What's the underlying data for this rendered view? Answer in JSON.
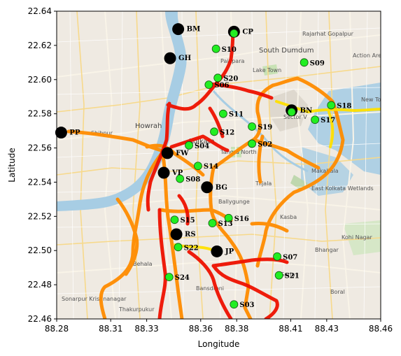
{
  "chart_data": {
    "type": "scatter",
    "title": "",
    "xlabel": "Longitude",
    "ylabel": "Latitude",
    "xlim": [
      88.28,
      88.46
    ],
    "ylim": [
      22.46,
      22.64
    ],
    "xticks": [
      88.28,
      88.31,
      88.33,
      88.36,
      88.38,
      88.41,
      88.43,
      88.46
    ],
    "yticks": [
      22.46,
      22.48,
      22.5,
      22.52,
      22.54,
      22.56,
      22.58,
      22.6,
      22.62,
      22.64
    ],
    "xtick_labels": [
      "88.28",
      "88.31",
      "88.33",
      "88.36",
      "88.38",
      "88.41",
      "88.43",
      "88.46"
    ],
    "ytick_labels": [
      "22.46",
      "22.48",
      "22.50",
      "22.52",
      "22.54",
      "22.56",
      "22.58",
      "22.60",
      "22.62",
      "22.64"
    ],
    "background": "street map of Kolkata",
    "colors": {
      "big_marker": "#000000",
      "station_marker": "#22ee22",
      "station_edge": "#115511",
      "track_high": "#ee1100",
      "track_mid": "#ff8c00",
      "track_low": "#ffe000"
    },
    "big_markers": [
      {
        "label": "BM",
        "lon": 88.3475,
        "lat": 22.6295
      },
      {
        "label": "CP",
        "lon": 88.3785,
        "lat": 22.628
      },
      {
        "label": "GH",
        "lon": 88.343,
        "lat": 22.6125
      },
      {
        "label": "BN",
        "lon": 88.4105,
        "lat": 22.582
      },
      {
        "label": "PP",
        "lon": 88.2825,
        "lat": 22.569
      },
      {
        "label": "FW",
        "lon": 88.3415,
        "lat": 22.557
      },
      {
        "label": "VP",
        "lon": 88.3395,
        "lat": 22.5455
      },
      {
        "label": "BG",
        "lon": 88.3635,
        "lat": 22.537
      },
      {
        "label": "RS",
        "lon": 88.3465,
        "lat": 22.5095
      },
      {
        "label": "JP",
        "lon": 88.369,
        "lat": 22.4995
      }
    ],
    "stations": [
      {
        "label": "CP",
        "lon": 88.3785,
        "lat": 22.627
      },
      {
        "label": "S10",
        "lon": 88.3685,
        "lat": 22.618
      },
      {
        "label": "S09",
        "lon": 88.4175,
        "lat": 22.61
      },
      {
        "label": "S20",
        "lon": 88.3695,
        "lat": 22.601
      },
      {
        "label": "S06",
        "lon": 88.3645,
        "lat": 22.597
      },
      {
        "label": "S11",
        "lon": 88.3725,
        "lat": 22.58
      },
      {
        "label": "BN",
        "lon": 88.4105,
        "lat": 22.581
      },
      {
        "label": "S18",
        "lon": 88.4325,
        "lat": 22.585
      },
      {
        "label": "S17",
        "lon": 88.4235,
        "lat": 22.5765
      },
      {
        "label": "S19",
        "lon": 88.3885,
        "lat": 22.5725
      },
      {
        "label": "S12",
        "lon": 88.3675,
        "lat": 22.5695
      },
      {
        "label": "S04",
        "lon": 88.3535,
        "lat": 22.5615
      },
      {
        "label": "S02",
        "lon": 88.3885,
        "lat": 22.5625
      },
      {
        "label": "S14",
        "lon": 88.3585,
        "lat": 22.5495
      },
      {
        "label": "S08",
        "lon": 88.3485,
        "lat": 22.542
      },
      {
        "label": "S15",
        "lon": 88.3455,
        "lat": 22.518
      },
      {
        "label": "S16",
        "lon": 88.3755,
        "lat": 22.519
      },
      {
        "label": "S13",
        "lon": 88.3665,
        "lat": 22.516
      },
      {
        "label": "S22",
        "lon": 88.3475,
        "lat": 22.502
      },
      {
        "label": "S07",
        "lon": 88.4025,
        "lat": 22.4965
      },
      {
        "label": "S21",
        "lon": 88.4035,
        "lat": 22.4855
      },
      {
        "label": "S24",
        "lon": 88.3425,
        "lat": 22.4845
      },
      {
        "label": "S03",
        "lon": 88.3785,
        "lat": 22.4685
      }
    ],
    "map_labels": [
      "South Dumdum",
      "Rajarhat Gopalpur",
      "Action Area II",
      "Lake Town",
      "Paikpara",
      "Howrah",
      "Shibpur",
      "Ballygunge",
      "Kasba",
      "Behala",
      "Makaltala",
      "East Kolkata Wetlands",
      "Kolkata",
      "Garia",
      "Tiljala",
      "Sonarpur Krishnanagar",
      "Thakurpukur",
      "Bansdroni",
      "Bhangar",
      "New Town",
      "Tangra North",
      "Sector V",
      "Kohi Nagar",
      "Boral"
    ]
  }
}
